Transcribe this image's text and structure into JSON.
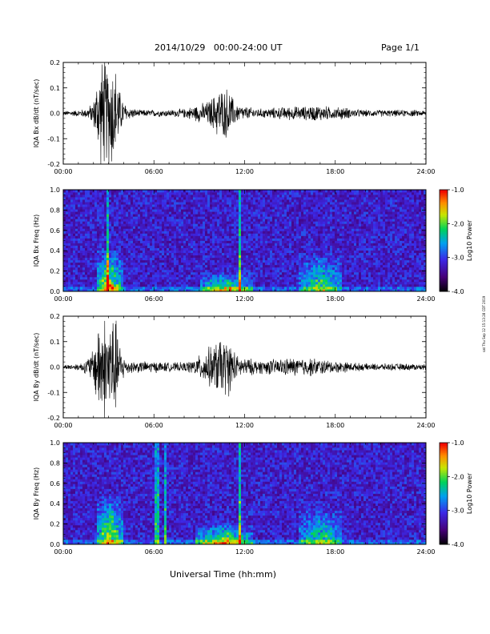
{
  "header": {
    "date_range": "2014/10/29   00:00-24:00 UT",
    "page": "Page 1/1"
  },
  "footer": {
    "x_axis_label": "Universal Time (hh:mm)"
  },
  "side_note": "sat Thu Sep 12 15:13:28 CDT 2019",
  "chart_data": [
    {
      "type": "line",
      "ylabel": "IQA Bx dB/dt (nT/sec)",
      "ylim": [
        -0.2,
        0.2
      ],
      "y_ticks": [
        -0.2,
        -0.1,
        0.0,
        0.1,
        0.2
      ],
      "y_tick_labels": [
        "-0.2",
        "-0.1",
        "0.0",
        "0.1",
        "0.2"
      ],
      "x_ticks": [
        "00:00",
        "06:00",
        "12:00",
        "18:00",
        "24:00"
      ],
      "xlim_hours": [
        0,
        24
      ],
      "color": "#000000",
      "series": [
        {
          "x": [
            0,
            1,
            1.5,
            2,
            2.3,
            2.6,
            2.9,
            3.2,
            3.5,
            3.8,
            4.2,
            5,
            6,
            7,
            8,
            8.5,
            9,
            9.5,
            10,
            10.3,
            10.6,
            10.9,
            11.2,
            11.5,
            12,
            13,
            14,
            15,
            16,
            16.5,
            17,
            17.5,
            18,
            18.5,
            19,
            20,
            21,
            22,
            23,
            24
          ],
          "amplitude": [
            0.01,
            0.015,
            0.02,
            0.05,
            0.18,
            0.25,
            0.22,
            0.25,
            0.2,
            0.08,
            0.03,
            0.015,
            0.015,
            0.015,
            0.02,
            0.03,
            0.04,
            0.05,
            0.08,
            0.12,
            0.1,
            0.12,
            0.07,
            0.04,
            0.03,
            0.02,
            0.025,
            0.03,
            0.03,
            0.035,
            0.035,
            0.03,
            0.025,
            0.03,
            0.02,
            0.015,
            0.015,
            0.015,
            0.015,
            0.012
          ]
        }
      ]
    },
    {
      "type": "heatmap",
      "ylabel": "IQA Bx Freq (Hz)",
      "ylim": [
        0,
        1.0
      ],
      "y_ticks": [
        0.0,
        0.2,
        0.4,
        0.6,
        0.8,
        1.0
      ],
      "y_tick_labels": [
        "0.0",
        "0.2",
        "0.4",
        "0.6",
        "0.8",
        "1.0"
      ],
      "x_ticks": [
        "00:00",
        "06:00",
        "12:00",
        "18:00",
        "24:00"
      ],
      "xlim_hours": [
        0,
        24
      ],
      "colorbar": {
        "label": "Log10 Power",
        "range": [
          -4.0,
          -1.0
        ],
        "tick_labels": [
          "-1.0",
          "-2.0",
          "-3.0",
          "-4.0"
        ]
      },
      "features": [
        {
          "kind": "band",
          "hours": [
            2.2,
            3.9
          ],
          "max_freq": 0.45,
          "strength": 0.75
        },
        {
          "kind": "band",
          "hours": [
            9.0,
            12.5
          ],
          "max_freq": 0.2,
          "strength": 0.65
        },
        {
          "kind": "band",
          "hours": [
            15.5,
            18.5
          ],
          "max_freq": 0.4,
          "strength": 0.5
        },
        {
          "kind": "line",
          "hour": 3.0,
          "strength": 0.6
        },
        {
          "kind": "line",
          "hour": 11.7,
          "strength": 0.65
        }
      ]
    },
    {
      "type": "line",
      "ylabel": "IQA By dB/dt (nT/sec)",
      "ylim": [
        -0.2,
        0.2
      ],
      "y_ticks": [
        -0.2,
        -0.1,
        0.0,
        0.1,
        0.2
      ],
      "y_tick_labels": [
        "-0.2",
        "-0.1",
        "0.0",
        "0.1",
        "0.2"
      ],
      "x_ticks": [
        "00:00",
        "06:00",
        "12:00",
        "18:00",
        "24:00"
      ],
      "xlim_hours": [
        0,
        24
      ],
      "color": "#000000",
      "series": [
        {
          "x": [
            0,
            1,
            1.5,
            2,
            2.3,
            2.6,
            2.9,
            3.2,
            3.5,
            3.8,
            4.2,
            5,
            6,
            7,
            8,
            8.5,
            9,
            9.5,
            10,
            10.3,
            10.6,
            10.9,
            11.2,
            11.5,
            12,
            13,
            14,
            15,
            16,
            16.5,
            17,
            17.5,
            18,
            18.5,
            19,
            20,
            21,
            22,
            23,
            24
          ],
          "amplitude": [
            0.01,
            0.015,
            0.03,
            0.08,
            0.2,
            0.25,
            0.2,
            0.25,
            0.2,
            0.08,
            0.03,
            0.025,
            0.025,
            0.02,
            0.02,
            0.03,
            0.05,
            0.08,
            0.1,
            0.13,
            0.12,
            0.13,
            0.09,
            0.05,
            0.04,
            0.03,
            0.035,
            0.04,
            0.04,
            0.04,
            0.035,
            0.03,
            0.025,
            0.025,
            0.02,
            0.015,
            0.015,
            0.015,
            0.015,
            0.012
          ]
        }
      ]
    },
    {
      "type": "heatmap",
      "ylabel": "IQA By Freq (Hz)",
      "ylim": [
        0,
        1.0
      ],
      "y_ticks": [
        0.0,
        0.2,
        0.4,
        0.6,
        0.8,
        1.0
      ],
      "y_tick_labels": [
        "0.0",
        "0.2",
        "0.4",
        "0.6",
        "0.8",
        "1.0"
      ],
      "x_ticks": [
        "00:00",
        "06:00",
        "12:00",
        "18:00",
        "24:00"
      ],
      "xlim_hours": [
        0,
        24
      ],
      "colorbar": {
        "label": "Log10 Power",
        "range": [
          -4.0,
          -1.0
        ],
        "tick_labels": [
          "-1.0",
          "-2.0",
          "-3.0",
          "-4.0"
        ]
      },
      "features": [
        {
          "kind": "band",
          "hours": [
            2.2,
            3.9
          ],
          "max_freq": 0.5,
          "strength": 0.75
        },
        {
          "kind": "band",
          "hours": [
            8.8,
            12.5
          ],
          "max_freq": 0.22,
          "strength": 0.7
        },
        {
          "kind": "band",
          "hours": [
            15.5,
            18.5
          ],
          "max_freq": 0.4,
          "strength": 0.5
        },
        {
          "kind": "line",
          "hour": 6.2,
          "strength": 0.5
        },
        {
          "kind": "line",
          "hour": 6.8,
          "strength": 0.5
        },
        {
          "kind": "line",
          "hour": 11.7,
          "strength": 0.6
        }
      ]
    }
  ]
}
